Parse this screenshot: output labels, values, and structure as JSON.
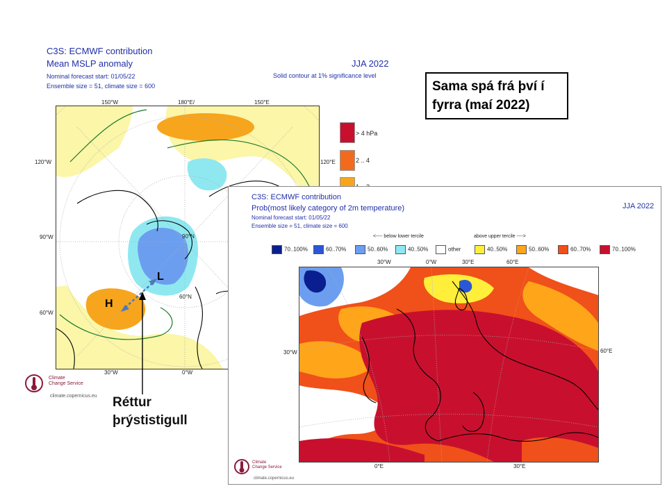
{
  "left_panel": {
    "title_lines": [
      "C3S: ECMWF contribution",
      "Mean MSLP anomaly"
    ],
    "meta_lines": [
      "Nominal forecast start: 01/05/22",
      "Ensemble size = 51, climate size = 600"
    ],
    "season": "JJA 2022",
    "significance": "Solid contour at 1% significance level",
    "ticks": {
      "lon_150w": "150°W",
      "lon_180e": "180°E/",
      "lon_150e": "150°E",
      "lon_120w": "120°W",
      "lon_120e": "120°E",
      "lat_90w": "90°W",
      "lat_90n": "90°N",
      "lat_60w": "60°W",
      "lat_60n": "60°N",
      "lon_30w": "30°W",
      "lon_0w": "0°W"
    },
    "markers": {
      "high": "H",
      "low": "L"
    },
    "legend": [
      {
        "label": ">  4 hPa",
        "color": "#c8102e"
      },
      {
        "label": "2 .. 4",
        "color": "#f26b1d"
      },
      {
        "label": "1 .. 2",
        "color": "#f7a51d"
      }
    ],
    "logo": {
      "line1": "Climate",
      "line2": "Change Service",
      "url": "climate.copernicus.eu"
    }
  },
  "right_panel": {
    "title_lines": [
      "C3S: ECMWF contribution",
      "Prob(most likely category of 2m temperature)"
    ],
    "meta_lines": [
      "Nominal forecast start: 01/05/22",
      "Ensemble size = 51, climate size = 600"
    ],
    "season": "JJA 2022",
    "tercile_below": "<---- below lower tercile",
    "tercile_above": "above upper tercile ---->",
    "legend": [
      {
        "label": "70..100%",
        "color": "#0a1f8f"
      },
      {
        "label": "60..70%",
        "color": "#2b57d6"
      },
      {
        "label": "50..60%",
        "color": "#6c9ef0"
      },
      {
        "label": "40..50%",
        "color": "#8fe8f0"
      },
      {
        "label": "other",
        "color": "#ffffff"
      },
      {
        "label": "40..50%",
        "color": "#ffef3a"
      },
      {
        "label": "50..60%",
        "color": "#ffa51a"
      },
      {
        "label": "60..70%",
        "color": "#f0501a"
      },
      {
        "label": "70..100%",
        "color": "#c8102e"
      }
    ],
    "ticks": {
      "top_30w": "30°W",
      "top_0w": "0°W",
      "top_30e": "30°E",
      "top_60e": "60°E",
      "left_30w": "30°W",
      "right_60e": "60°E",
      "bottom_0e": "0°E",
      "bottom_30e": "30°E"
    },
    "logo": {
      "line1": "Climate",
      "line2": "Change Service",
      "url": "climate.copernicus.eu"
    }
  },
  "callout": {
    "text": "Sama spá frá því í fyrra (maí 2022)"
  },
  "note": {
    "line1": "Réttur",
    "line2": "þrýstistigull"
  }
}
